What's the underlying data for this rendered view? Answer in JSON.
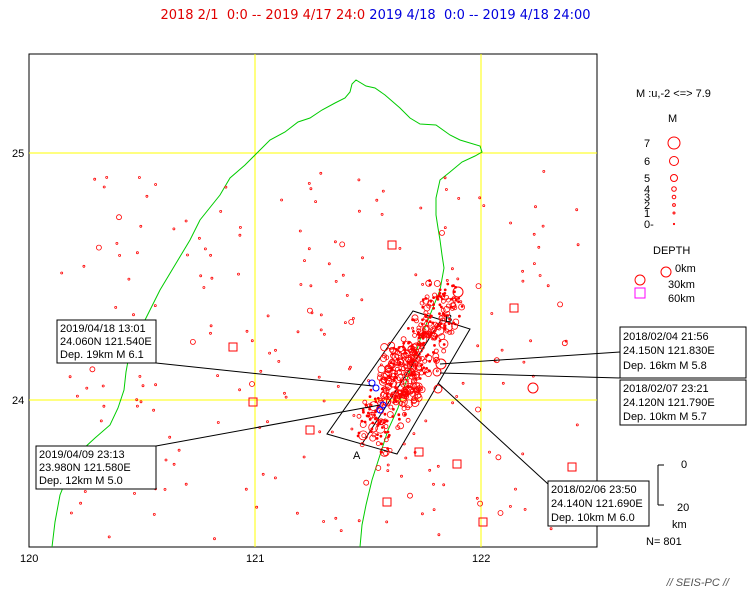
{
  "header": {
    "range1": "2018 2/1  0:0 -- 2019 4/17 24:0",
    "range2": "2019 4/18  0:0 -- 2019 4/18 24:00"
  },
  "map": {
    "lat_ticks": [
      "25",
      "24"
    ],
    "lon_ticks": [
      "120",
      "121",
      "122"
    ],
    "profile_start": "A",
    "profile_end": "B",
    "count": "N= 801",
    "colors": {
      "coast": "#00cc00",
      "grid": "#ffff00",
      "event": "#ff0000",
      "recent": "#0000ff",
      "deep": "#ff00ff"
    }
  },
  "legend": {
    "magnitude_rule": "M :u,-2 <=> 7.9",
    "magnitude_title": "M",
    "magnitudes": [
      "7",
      "6",
      "5",
      "4",
      "3",
      "2",
      "1",
      "0-"
    ],
    "depth_title": "DEPTH",
    "depths": [
      "0km",
      "30km",
      "60km"
    ],
    "depth_scale_top": "0",
    "depth_scale_bottom": "20",
    "depth_scale_unit": "km"
  },
  "annotations": [
    {
      "time": "2019/04/18 13:01",
      "coords": "24.060N  121.540E",
      "detail": "Dep. 19km   M 6.1"
    },
    {
      "time": "2019/04/09 23:13",
      "coords": "23.980N  121.580E",
      "detail": "Dep. 12km   M 5.0"
    },
    {
      "time": "2018/02/04 21:56",
      "coords": "24.150N  121.830E",
      "detail": "Dep. 16km   M 5.8"
    },
    {
      "time": "2018/02/07 23:21",
      "coords": "24.120N  121.790E",
      "detail": "Dep. 10km   M 5.7"
    },
    {
      "time": "2018/02/06 23:50",
      "coords": "24.140N  121.690E",
      "detail": "Dep. 10km   M 6.0"
    }
  ],
  "footer": "// SEIS-PC //"
}
